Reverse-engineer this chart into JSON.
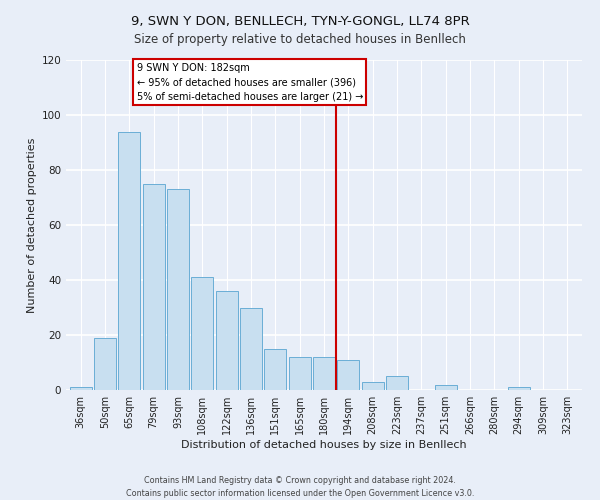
{
  "title": "9, SWN Y DON, BENLLECH, TYN-Y-GONGL, LL74 8PR",
  "subtitle": "Size of property relative to detached houses in Benllech",
  "xlabel": "Distribution of detached houses by size in Benllech",
  "ylabel": "Number of detached properties",
  "footer_line1": "Contains HM Land Registry data © Crown copyright and database right 2024.",
  "footer_line2": "Contains public sector information licensed under the Open Government Licence v3.0.",
  "bar_labels": [
    "36sqm",
    "50sqm",
    "65sqm",
    "79sqm",
    "93sqm",
    "108sqm",
    "122sqm",
    "136sqm",
    "151sqm",
    "165sqm",
    "180sqm",
    "194sqm",
    "208sqm",
    "223sqm",
    "237sqm",
    "251sqm",
    "266sqm",
    "280sqm",
    "294sqm",
    "309sqm",
    "323sqm"
  ],
  "bar_values": [
    1,
    19,
    94,
    75,
    73,
    41,
    36,
    30,
    15,
    12,
    12,
    11,
    3,
    5,
    0,
    2,
    0,
    0,
    1,
    0,
    0
  ],
  "bar_color": "#c8dff0",
  "bar_edge_color": "#6aaed6",
  "vline_color": "#cc0000",
  "annotation_title": "9 SWN Y DON: 182sqm",
  "annotation_line2": "← 95% of detached houses are smaller (396)",
  "annotation_line3": "5% of semi-detached houses are larger (21) →",
  "annotation_box_color": "#ffffff",
  "annotation_box_edge": "#cc0000",
  "ylim": [
    0,
    120
  ],
  "yticks": [
    0,
    20,
    40,
    60,
    80,
    100,
    120
  ],
  "background_color": "#e8eef8",
  "plot_bg_color": "#e8eef8",
  "grid_color": "#ffffff",
  "title_fontsize": 9.5,
  "subtitle_fontsize": 8.5,
  "axis_label_fontsize": 8,
  "tick_fontsize": 7,
  "annotation_fontsize": 7,
  "footer_fontsize": 5.8
}
